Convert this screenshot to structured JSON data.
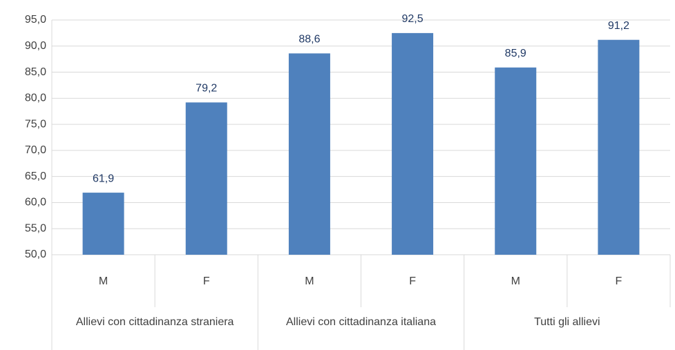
{
  "chart_data": {
    "type": "bar",
    "categories": [
      "M",
      "F",
      "M",
      "F",
      "M",
      "F"
    ],
    "groups": [
      "Allievi con cittadinanza straniera",
      "Allievi con cittadinanza italiana",
      "Tutti gli allievi"
    ],
    "values": [
      61.9,
      79.2,
      88.6,
      92.5,
      85.9,
      91.2
    ],
    "value_labels": [
      "61,9",
      "79,2",
      "88,6",
      "92,5",
      "85,9",
      "91,2"
    ],
    "color": "#4f81bd",
    "ylim": [
      50,
      95
    ],
    "yticks": [
      {
        "value": 50,
        "label": "50,0"
      },
      {
        "value": 55,
        "label": "55,0"
      },
      {
        "value": 60,
        "label": "60,0"
      },
      {
        "value": 65,
        "label": "65,0"
      },
      {
        "value": 70,
        "label": "70,0"
      },
      {
        "value": 75,
        "label": "75,0"
      },
      {
        "value": 80,
        "label": "80,0"
      },
      {
        "value": 85,
        "label": "85,0"
      },
      {
        "value": 90,
        "label": "90,0"
      },
      {
        "value": 95,
        "label": "95,0"
      }
    ],
    "grid": true
  }
}
